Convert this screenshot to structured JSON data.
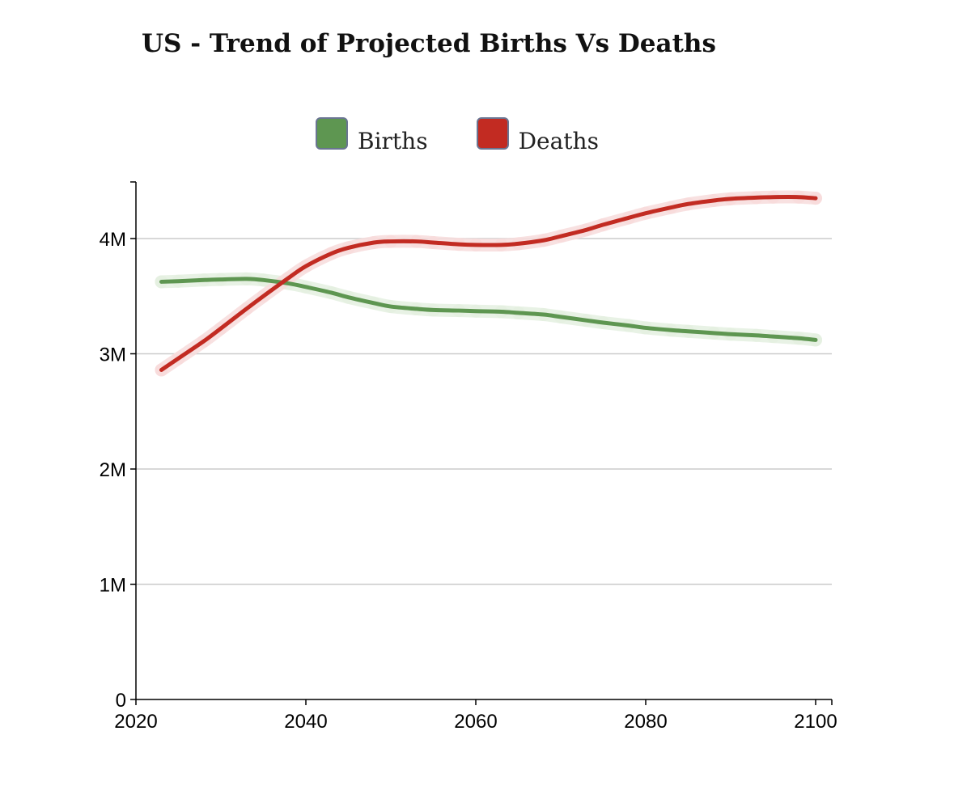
{
  "chart_data": {
    "type": "line",
    "title": "US - Trend of Projected Births Vs Deaths",
    "xlabel": "",
    "ylabel": "",
    "xlim": [
      2020,
      2101
    ],
    "ylim": [
      0,
      4500000
    ],
    "x_ticks": [
      2020,
      2040,
      2060,
      2080,
      2100
    ],
    "y_ticks": [
      0,
      1000000,
      2000000,
      3000000,
      4000000
    ],
    "y_tick_labels": [
      "0",
      "1M",
      "2M",
      "3M",
      "4M"
    ],
    "grid": "horizontal",
    "legend_position": "top-center",
    "x": [
      2023,
      2025,
      2028,
      2030,
      2033,
      2035,
      2038,
      2040,
      2043,
      2045,
      2048,
      2050,
      2053,
      2055,
      2058,
      2060,
      2063,
      2065,
      2068,
      2070,
      2073,
      2075,
      2078,
      2080,
      2083,
      2085,
      2088,
      2090,
      2093,
      2095,
      2098,
      2100
    ],
    "series": [
      {
        "name": "Births",
        "color": "#5e9651",
        "values": [
          3625000,
          3630000,
          3640000,
          3645000,
          3650000,
          3640000,
          3610000,
          3580000,
          3530000,
          3490000,
          3440000,
          3410000,
          3390000,
          3380000,
          3375000,
          3370000,
          3365000,
          3355000,
          3340000,
          3320000,
          3290000,
          3270000,
          3245000,
          3225000,
          3205000,
          3195000,
          3180000,
          3170000,
          3160000,
          3150000,
          3135000,
          3120000
        ]
      },
      {
        "name": "Deaths",
        "color": "#c22b22",
        "values": [
          2860000,
          2960000,
          3110000,
          3220000,
          3390000,
          3500000,
          3660000,
          3760000,
          3870000,
          3920000,
          3965000,
          3975000,
          3975000,
          3965000,
          3950000,
          3945000,
          3945000,
          3955000,
          3985000,
          4020000,
          4075000,
          4120000,
          4180000,
          4220000,
          4270000,
          4300000,
          4330000,
          4345000,
          4355000,
          4360000,
          4360000,
          4350000
        ]
      }
    ]
  },
  "colors": {
    "births": "#5e9651",
    "deaths": "#c22b22",
    "births_halo": "#e4f0e0",
    "deaths_halo": "#f7dcdc",
    "grid": "#cccccc",
    "axis": "#000000"
  }
}
